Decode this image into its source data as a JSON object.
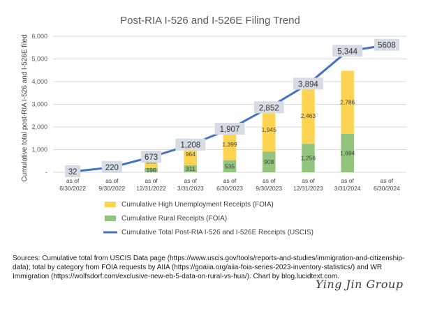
{
  "chart_data": {
    "type": "bar",
    "title": "Post-RIA I-526 and I-526E Filing Trend",
    "ylabel": "Cumulative total post-RIA I-526 and I-526E filed",
    "xlabel": "",
    "ylim": [
      0,
      6000
    ],
    "yticks": [
      "-",
      "1,000",
      "2,000",
      "3,000",
      "4,000",
      "5,000",
      "6,000"
    ],
    "categories": [
      [
        "as of",
        "6/30/2022"
      ],
      [
        "as of",
        "9/30/2022"
      ],
      [
        "as of",
        "12/31/2022"
      ],
      [
        "as of",
        "3/31/2023"
      ],
      [
        "as of",
        "6/30/2023"
      ],
      [
        "as of",
        "9/30/2023"
      ],
      [
        "as of",
        "12/31/2023"
      ],
      [
        "as of",
        "3/31/2024"
      ],
      [
        "as of",
        "6/30/2024"
      ]
    ],
    "stacked": true,
    "series": [
      {
        "name": "Cumulative Rural Receipts (FOIA)",
        "kind": "bar",
        "color": "#92c47d",
        "values": [
          null,
          null,
          196,
          311,
          535,
          908,
          1256,
          1694,
          null
        ]
      },
      {
        "name": "Cumulative High Unemployment Receipts (FOIA)",
        "kind": "bar",
        "color": "#fdd451",
        "values": [
          null,
          null,
          568,
          964,
          1399,
          1945,
          2463,
          2786,
          null
        ]
      },
      {
        "name": "Cumulative Total Post-RIA I-526 and I-526E Receipts (USCIS)",
        "kind": "line",
        "color": "#4472c4",
        "values": [
          32,
          220,
          673,
          1208,
          1907,
          2852,
          3894,
          5344,
          5608
        ],
        "labels": [
          "32",
          "220",
          "673",
          "1,208",
          "1,907",
          "2,852",
          "3,894",
          "5,344",
          "5608"
        ]
      }
    ],
    "legend_position": "bottom",
    "grid": true
  },
  "source_note": "Sources: Cumulative total from USCIS Data page (https://www.uscis.gov/tools/reports-and-studies/immigration-and-citizenship-data); total by category from FOIA requests by AIIA (https://goaiia.org/aiia-foia-series-2023-inventory-statistics/) and WR Immigration (https://wolfsdorf.com/exclusive-new-eb-5-data-on-rural-vs-hua/). Chart by blog.lucidtext.com.",
  "watermark": "Ying Jin Group"
}
